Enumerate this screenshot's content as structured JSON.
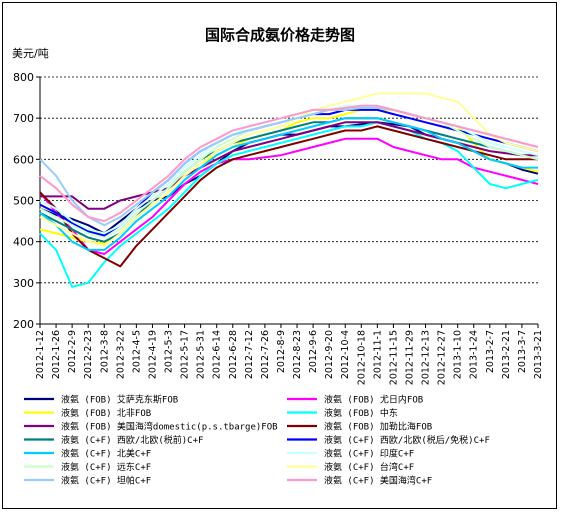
{
  "chart_data": {
    "type": "line",
    "title": "国际合成氨价格走势图",
    "ylabel": "美元/吨",
    "xlabel": "",
    "ylim": [
      200,
      800
    ],
    "yticks": [
      "200",
      "300",
      "400",
      "500",
      "600",
      "700",
      "800"
    ],
    "grid": "horizontal dashed",
    "legend_position": "bottom",
    "x": [
      "2012-1-12",
      "2012-1-26",
      "2012-2-9",
      "2012-2-23",
      "2012-3-8",
      "2012-3-22",
      "2012-4-5",
      "2012-4-19",
      "2012-5-3",
      "2012-5-17",
      "2012-5-31",
      "2012-6-14",
      "2012-6-28",
      "2012-7-12",
      "2012-7-26",
      "2012-8-9",
      "2012-8-23",
      "2012-9-6",
      "2012-9-20",
      "2012-10-4",
      "2012-10-18",
      "2012-11-1",
      "2012-11-15",
      "2012-11-29",
      "2012-12-13",
      "2012-12-27",
      "2013-1-10",
      "2013-1-24",
      "2013-2-7",
      "2013-2-21",
      "2013-3-7",
      "2013-3-21"
    ],
    "series": [
      {
        "name": "液氨 (FOB) 艾萨克东斯FOB",
        "color": "#000080",
        "values": [
          480,
          465,
          455,
          440,
          420,
          450,
          480,
          500,
          510,
          540,
          560,
          590,
          620,
          640,
          650,
          660,
          660,
          670,
          680,
          680,
          685,
          690,
          685,
          680,
          660,
          650,
          640,
          620,
          600,
          590,
          575,
          565
        ]
      },
      {
        "name": "液氨 (FOB) 尤日内FOB",
        "color": "#ff00ff",
        "values": [
          520,
          470,
          430,
          380,
          370,
          400,
          430,
          460,
          500,
          540,
          570,
          590,
          600,
          600,
          605,
          610,
          620,
          630,
          640,
          650,
          650,
          650,
          630,
          620,
          610,
          600,
          600,
          580,
          570,
          560,
          550,
          540
        ]
      },
      {
        "name": "液氨 (FOB) 北非FOB",
        "color": "#ffff00",
        "values": [
          430,
          420,
          410,
          400,
          395,
          420,
          460,
          490,
          520,
          560,
          590,
          610,
          630,
          650,
          660,
          670,
          690,
          700,
          700,
          710,
          720,
          720,
          720,
          710,
          700,
          690,
          680,
          640,
          600,
          590,
          580,
          570
        ]
      },
      {
        "name": "液氨 (FOB) 中东",
        "color": "#00ffff",
        "values": [
          420,
          380,
          290,
          300,
          350,
          390,
          420,
          450,
          480,
          520,
          560,
          590,
          610,
          620,
          630,
          640,
          650,
          660,
          670,
          680,
          680,
          690,
          680,
          670,
          650,
          640,
          620,
          580,
          540,
          530,
          540,
          550
        ]
      },
      {
        "name": "液氨 (FOB) 美国海湾domestic(p.s.tbarge)FOB",
        "color": "#800080",
        "values": [
          510,
          510,
          510,
          480,
          480,
          500,
          510,
          520,
          530,
          560,
          580,
          600,
          620,
          630,
          640,
          650,
          660,
          670,
          680,
          690,
          690,
          690,
          680,
          670,
          660,
          650,
          640,
          630,
          620,
          615,
          610,
          610
        ]
      },
      {
        "name": "液氨 (FOB) 加勒比海FOB",
        "color": "#800000",
        "values": [
          520,
          480,
          420,
          380,
          360,
          340,
          390,
          430,
          470,
          510,
          550,
          580,
          600,
          610,
          620,
          630,
          640,
          650,
          660,
          670,
          670,
          680,
          670,
          660,
          650,
          640,
          630,
          620,
          610,
          600,
          600,
          600
        ]
      },
      {
        "name": "液氨 (C+F) 西欧/北欧(税前)C+F",
        "color": "#008080",
        "values": [
          470,
          450,
          430,
          410,
          400,
          420,
          460,
          500,
          530,
          570,
          600,
          620,
          640,
          650,
          660,
          670,
          680,
          690,
          690,
          700,
          700,
          700,
          690,
          680,
          670,
          660,
          650,
          640,
          630,
          620,
          610,
          600
        ]
      },
      {
        "name": "液氨 (C+F) 西欧/北欧(税后/免税)C+F",
        "color": "#0000ff",
        "values": [
          490,
          470,
          445,
          425,
          415,
          440,
          480,
          520,
          550,
          590,
          620,
          640,
          660,
          670,
          680,
          690,
          700,
          710,
          710,
          720,
          720,
          720,
          710,
          700,
          690,
          680,
          670,
          660,
          650,
          640,
          630,
          620
        ]
      },
      {
        "name": "液氨 (C+F) 北美C+F",
        "color": "#00ccff",
        "values": [
          470,
          440,
          400,
          380,
          380,
          410,
          450,
          480,
          510,
          550,
          580,
          610,
          630,
          640,
          650,
          660,
          670,
          680,
          690,
          700,
          700,
          700,
          690,
          680,
          670,
          650,
          640,
          620,
          600,
          590,
          580,
          580
        ]
      },
      {
        "name": "液氨 (C+F) 印度C+F",
        "color": "#ccffff",
        "values": [
          500,
          480,
          450,
          430,
          420,
          440,
          480,
          510,
          540,
          580,
          610,
          640,
          660,
          680,
          690,
          700,
          710,
          720,
          720,
          730,
          730,
          730,
          720,
          710,
          700,
          690,
          680,
          660,
          640,
          630,
          620,
          610
        ]
      },
      {
        "name": "液氨 (C+F) 远东C+F",
        "color": "#ccffcc",
        "values": [
          480,
          460,
          440,
          420,
          410,
          430,
          470,
          500,
          530,
          570,
          600,
          630,
          650,
          670,
          680,
          690,
          700,
          710,
          720,
          720,
          730,
          730,
          720,
          710,
          700,
          690,
          670,
          650,
          630,
          620,
          610,
          600
        ]
      },
      {
        "name": "液氨 (C+F) 台湾C+F",
        "color": "#ffff99",
        "values": [
          460,
          440,
          420,
          400,
          390,
          420,
          460,
          490,
          520,
          560,
          590,
          620,
          640,
          660,
          670,
          680,
          700,
          720,
          730,
          740,
          750,
          760,
          760,
          760,
          760,
          750,
          740,
          700,
          660,
          640,
          630,
          620
        ]
      },
      {
        "name": "液氨 (C+F) 坦帕C+F",
        "color": "#99ccff",
        "values": [
          600,
          560,
          500,
          460,
          440,
          460,
          490,
          520,
          550,
          590,
          620,
          640,
          660,
          670,
          680,
          690,
          700,
          710,
          720,
          720,
          725,
          725,
          720,
          710,
          700,
          690,
          680,
          670,
          660,
          650,
          640,
          630
        ]
      },
      {
        "name": "液氨 (C+F) 美国海湾C+F",
        "color": "#ff99cc",
        "values": [
          560,
          530,
          490,
          460,
          450,
          470,
          500,
          530,
          560,
          600,
          630,
          650,
          670,
          680,
          690,
          700,
          710,
          720,
          720,
          725,
          730,
          730,
          720,
          710,
          700,
          690,
          680,
          670,
          660,
          650,
          640,
          630
        ]
      }
    ]
  }
}
